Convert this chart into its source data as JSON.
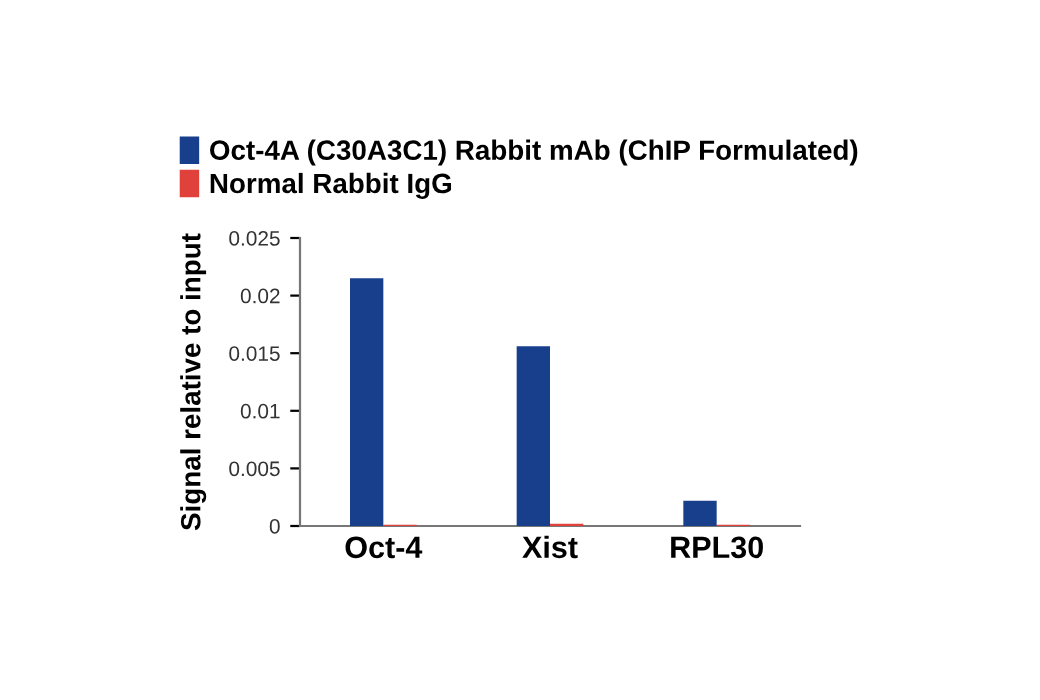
{
  "chart_data": {
    "type": "bar",
    "ylabel": "Signal relative to input",
    "categories": [
      "Oct-4",
      "Xist",
      "RPL30"
    ],
    "series": [
      {
        "name": "Oct-4A (C30A3C1) Rabbit mAb (ChIP Formulated)",
        "color": "#183f8c",
        "values": [
          0.0215,
          0.0156,
          0.0022
        ]
      },
      {
        "name": "Normal Rabbit IgG",
        "color": "#e0413a",
        "values": [
          0.0001,
          0.0002,
          0.0001
        ]
      }
    ],
    "ylim": [
      0,
      0.025
    ],
    "yticks": [
      0,
      0.005,
      0.01,
      0.015,
      0.02,
      0.025
    ],
    "grid": false,
    "legend": "top left"
  }
}
